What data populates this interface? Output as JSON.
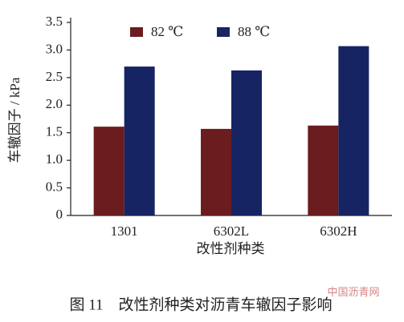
{
  "chart_data": {
    "type": "bar",
    "caption": "图 11　改性剂种类对沥青车辙因子影响",
    "watermark": "中国沥青网",
    "x_label": "改性剂种类",
    "y_label": "车辙因子 / kPa",
    "categories": [
      "1301",
      "6302L",
      "6302H"
    ],
    "series": [
      {
        "name": "82 ℃",
        "color": "#6b1c1e",
        "values": [
          1.61,
          1.57,
          1.63
        ]
      },
      {
        "name": "88 ℃",
        "color": "#172463",
        "values": [
          2.7,
          2.63,
          3.07
        ]
      }
    ],
    "ylim": [
      0,
      3.5
    ],
    "yticks": [
      0,
      0.5,
      {
        "value": 1,
        "label": "1.0"
      },
      1.5,
      {
        "value": 2,
        "label": "2.0"
      },
      2.5,
      {
        "value": 3,
        "label": "3.0"
      },
      3.5
    ],
    "legend": "top"
  }
}
